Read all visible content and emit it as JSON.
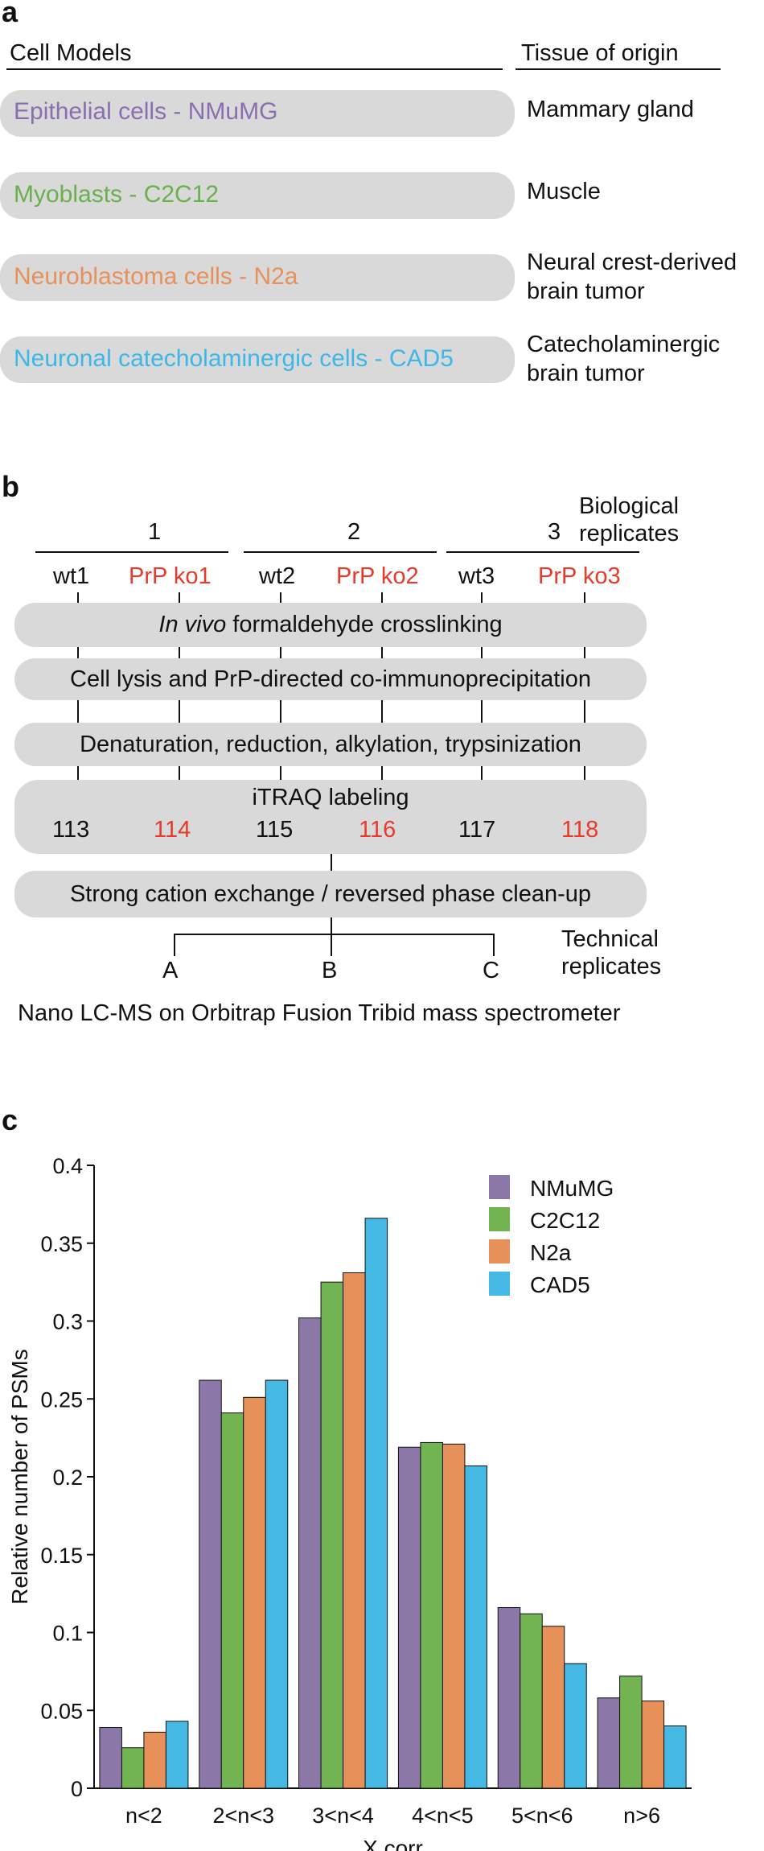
{
  "panel_a": {
    "letter": "a",
    "header_models": "Cell Models",
    "header_tissue": "Tissue of origin",
    "rows": [
      {
        "model": "Epithelial cells - NMuMG",
        "tissue_lines": [
          "Mammary gland"
        ],
        "color": "#8a6fb0"
      },
      {
        "model": "Myoblasts - C2C12",
        "tissue_lines": [
          "Muscle"
        ],
        "color": "#6ab04c"
      },
      {
        "model": "Neuroblastoma cells - N2a",
        "tissue_lines": [
          "Neural crest-derived",
          "brain tumor"
        ],
        "color": "#e8905a"
      },
      {
        "model": "Neuronal catecholaminergic cells - CAD5",
        "tissue_lines": [
          "Catecholaminergic",
          "brain tumor"
        ],
        "color": "#3bb8e8"
      }
    ]
  },
  "panel_b": {
    "letter": "b",
    "replicate_numbers": [
      "1",
      "2",
      "3"
    ],
    "biological_label": [
      "Biological",
      "replicates"
    ],
    "samples": [
      {
        "label": "wt1",
        "red": false
      },
      {
        "label": "PrP ko1",
        "red": true
      },
      {
        "label": "wt2",
        "red": false
      },
      {
        "label": "PrP ko2",
        "red": true
      },
      {
        "label": "wt3",
        "red": false
      },
      {
        "label": "PrP ko3",
        "red": true
      }
    ],
    "step1_italic": "In vivo",
    "step1_rest": " formaldehyde crosslinking",
    "step2": "Cell lysis and PrP-directed co-immunoprecipitation",
    "step3": "Denaturation, reduction, alkylation, trypsinization",
    "step4": "iTRAQ labeling",
    "itraq_channels": [
      {
        "label": "113",
        "red": false
      },
      {
        "label": "114",
        "red": true
      },
      {
        "label": "115",
        "red": false
      },
      {
        "label": "116",
        "red": true
      },
      {
        "label": "117",
        "red": false
      },
      {
        "label": "118",
        "red": true
      }
    ],
    "step5": "Strong cation exchange / reversed phase clean-up",
    "technical": [
      "A",
      "B",
      "C"
    ],
    "technical_label": [
      "Technical",
      "replicates"
    ],
    "final": "Nano LC-MS on Orbitrap Fusion Tribid mass spectrometer"
  },
  "panel_c": {
    "letter": "c"
  },
  "chart_data": {
    "type": "bar",
    "categories": [
      "n<2",
      "2<n<3",
      "3<n<4",
      "4<n<5",
      "5<n<6",
      "n>6"
    ],
    "series": [
      {
        "name": "NMuMG",
        "color": "#8c78a8",
        "values": [
          0.039,
          0.262,
          0.302,
          0.219,
          0.116,
          0.058
        ]
      },
      {
        "name": "C2C12",
        "color": "#72b452",
        "values": [
          0.026,
          0.241,
          0.325,
          0.222,
          0.112,
          0.072
        ]
      },
      {
        "name": "N2a",
        "color": "#e8905a",
        "values": [
          0.036,
          0.251,
          0.331,
          0.221,
          0.104,
          0.056
        ]
      },
      {
        "name": "CAD5",
        "color": "#45b8e3",
        "values": [
          0.043,
          0.262,
          0.366,
          0.207,
          0.08,
          0.04
        ]
      }
    ],
    "xlabel": "X corr",
    "ylabel": "Relative number of PSMs",
    "ylim": [
      0,
      0.4
    ],
    "yticks": [
      "0",
      "0.05",
      "0.1",
      "0.15",
      "0.2",
      "0.25",
      "0.3",
      "0.35",
      "0.4"
    ],
    "legend_position": "top-right",
    "grid": false
  }
}
